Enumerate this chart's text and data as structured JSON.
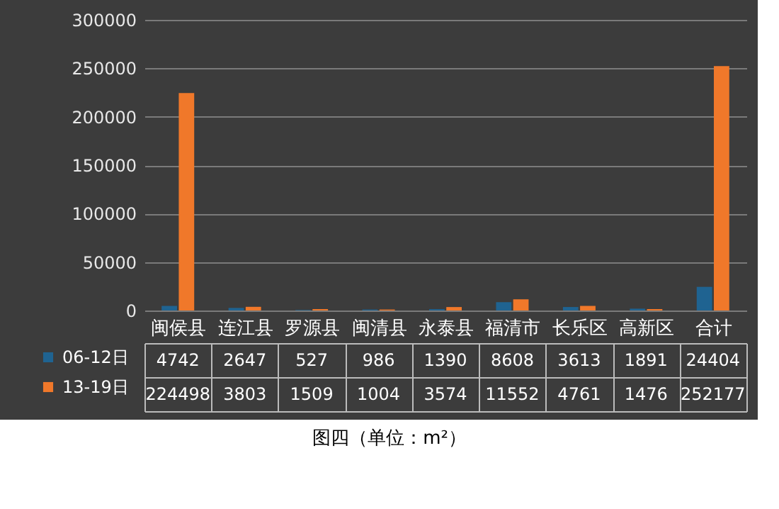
{
  "chart_data": {
    "type": "bar",
    "categories": [
      "闽侯县",
      "连江县",
      "罗源县",
      "闽清县",
      "永泰县",
      "福清市",
      "长乐区",
      "高新区",
      "合计"
    ],
    "series": [
      {
        "name": "06-12日",
        "color": "#1f6391",
        "values": [
          4742,
          2647,
          527,
          986,
          1390,
          8608,
          3613,
          1891,
          24404
        ]
      },
      {
        "name": "13-19日",
        "color": "#f0782a",
        "values": [
          224498,
          3803,
          1509,
          1004,
          3574,
          11552,
          4761,
          1476,
          252177
        ]
      }
    ],
    "legend": "bottom left",
    "ylim": [
      0,
      300000
    ],
    "yticks": [
      0,
      50000,
      100000,
      150000,
      200000,
      250000,
      300000
    ],
    "grid": "y",
    "data_labels": true,
    "annotations": [
      "图四（单位：m²）"
    ]
  }
}
